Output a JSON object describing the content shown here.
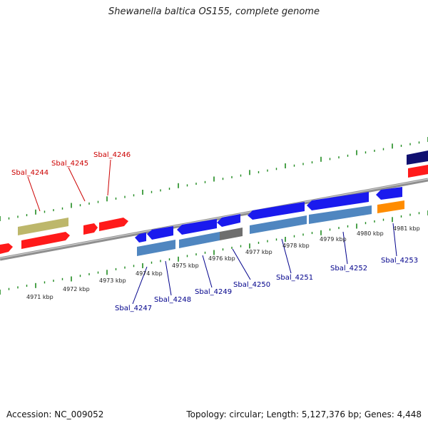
{
  "title": "Shewanella baltica OS155, complete genome",
  "accession": "Accession: NC_009052",
  "topology": "Topology: circular; Length: 5,127,376 bp; Genes: 4,448",
  "colors": {
    "gene_red": "#ff1a1a",
    "gene_olive": "#bdb76b",
    "gene_blue": "#1a1aee",
    "gene_steel": "#4f86c0",
    "gene_gray": "#6e6e6e",
    "gene_orange": "#ff8c00",
    "gene_navy": "#101070",
    "backbone": "#8f8f8f",
    "ticks": "#1f8a1f",
    "label_top": "#cc0000",
    "label_bottom": "#00008b"
  },
  "kbp_labels": [
    "4971 kbp",
    "4972 kbp",
    "4973 kbp",
    "4974 kbp",
    "4975 kbp",
    "4976 kbp",
    "4977 kbp",
    "4978 kbp",
    "4979 kbp",
    "4980 kbp",
    "4981 kbp"
  ],
  "gene_labels_top": [
    "Sbal_4244",
    "Sbal_4245",
    "Sbal_4246"
  ],
  "gene_labels_bottom": [
    "Sbal_4247",
    "Sbal_4248",
    "Sbal_4249",
    "Sbal_4250",
    "Sbal_4251",
    "Sbal_4252",
    "Sbal_4253"
  ]
}
